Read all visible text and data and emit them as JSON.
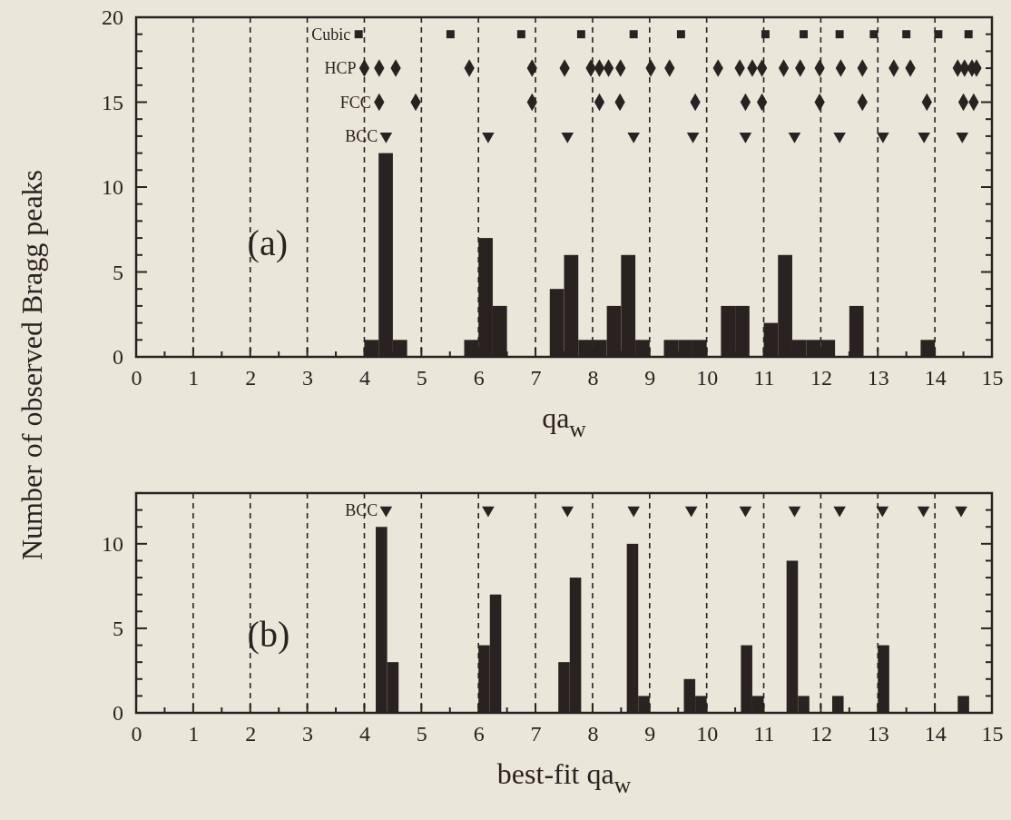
{
  "chart_data": [
    {
      "type": "histogram",
      "color": "#2a2220",
      "xlabel": "qa$_{w}$",
      "ylabel": "Number of observed Bragg peaks",
      "grid": "x",
      "annotations": [
        "(a)"
      ],
      "bins": [
        4,
        4.25,
        4.5,
        4.75,
        5,
        5.25,
        5.5,
        5.75,
        6,
        6.25,
        6.5,
        6.75,
        7,
        7.25,
        7.5,
        7.75,
        8,
        8.25,
        8.5,
        8.75,
        9,
        9.25,
        9.5,
        9.75,
        10,
        10.25,
        10.5,
        10.75,
        11,
        11.25,
        11.5,
        11.75,
        12,
        12.25,
        12.5,
        12.75,
        13,
        13.25,
        13.5,
        13.75,
        14
      ],
      "values": [
        1,
        12,
        1,
        0,
        0,
        0,
        0,
        1,
        7,
        3,
        0,
        0,
        0,
        4,
        6,
        1,
        1,
        3,
        6,
        1,
        0,
        1,
        1,
        1,
        0,
        3,
        3,
        0,
        2,
        6,
        1,
        1,
        1,
        0,
        3,
        0,
        0,
        0,
        0,
        1
      ],
      "xlim": [
        0,
        15
      ],
      "xticks": [
        0,
        {
          "value": 0.5,
          "label": null
        },
        1,
        {
          "value": 1.5,
          "label": null
        },
        2,
        {
          "value": 2.5,
          "label": null
        },
        3,
        {
          "value": 3.5,
          "label": null
        },
        4,
        {
          "value": 4.5,
          "label": null
        },
        5,
        {
          "value": 5.5,
          "label": null
        },
        6,
        {
          "value": 6.5,
          "label": null
        },
        7,
        {
          "value": 7.5,
          "label": null
        },
        8,
        {
          "value": 8.5,
          "label": null
        },
        9,
        {
          "value": 9.5,
          "label": null
        },
        10,
        {
          "value": 10.5,
          "label": null
        },
        11,
        {
          "value": 11.5,
          "label": null
        },
        12,
        {
          "value": 12.5,
          "label": null
        },
        13,
        {
          "value": 13.5,
          "label": null
        },
        14,
        {
          "value": 14.5,
          "label": null
        },
        15
      ],
      "ylim": [
        0,
        20
      ],
      "yticks": [
        0,
        {
          "value": 1,
          "label": null
        },
        {
          "value": 2,
          "label": null
        },
        {
          "value": 3,
          "label": null
        },
        {
          "value": 4,
          "label": null
        },
        5,
        {
          "value": 6,
          "label": null
        },
        {
          "value": 7,
          "label": null
        },
        {
          "value": 8,
          "label": null
        },
        {
          "value": 9,
          "label": null
        },
        10,
        {
          "value": 11,
          "label": null
        },
        {
          "value": 12,
          "label": null
        },
        {
          "value": 13,
          "label": null
        },
        {
          "value": 14,
          "label": null
        },
        15,
        {
          "value": 16,
          "label": null
        },
        {
          "value": 17,
          "label": null
        },
        {
          "value": 18,
          "label": null
        },
        {
          "value": 19,
          "label": null
        },
        20
      ],
      "series": [
        {
          "name": "Cubic",
          "type": "scatter",
          "marker": "square",
          "color": "#2a2220",
          "x": [
            3.9,
            5.51,
            6.75,
            7.8,
            8.72,
            9.55,
            11.03,
            11.7,
            12.33,
            12.93,
            13.5,
            14.06,
            14.59
          ],
          "values": [
            19,
            19,
            19,
            19,
            19,
            19,
            19,
            19,
            19,
            19,
            19,
            19,
            19
          ]
        },
        {
          "name": "HCP",
          "type": "scatter",
          "marker": "diamond",
          "color": "#2a2220",
          "x": [
            4.0,
            4.26,
            4.55,
            5.84,
            6.94,
            7.51,
            7.97,
            8.12,
            8.28,
            8.49,
            9.02,
            9.35,
            10.2,
            10.58,
            10.8,
            10.97,
            11.35,
            11.64,
            11.98,
            12.35,
            12.73,
            13.28,
            13.57,
            14.4,
            14.52,
            14.65,
            14.73
          ],
          "values": [
            17,
            17,
            17,
            17,
            17,
            17,
            17,
            17,
            17,
            17,
            17,
            17,
            17,
            17,
            17,
            17,
            17,
            17,
            17,
            17,
            17,
            17,
            17,
            17,
            17,
            17,
            17
          ]
        },
        {
          "name": "FCC",
          "type": "scatter",
          "marker": "diamond",
          "color": "#2a2220",
          "x": [
            4.26,
            4.9,
            6.94,
            8.12,
            8.48,
            9.8,
            10.68,
            10.97,
            11.98,
            12.73,
            13.86,
            14.5,
            14.68
          ],
          "values": [
            15,
            15,
            15,
            15,
            15,
            15,
            15,
            15,
            15,
            15,
            15,
            15,
            15
          ]
        },
        {
          "name": "BCC",
          "type": "scatter",
          "marker": "triangle",
          "color": "#2a2220",
          "x": [
            4.38,
            6.17,
            7.56,
            8.72,
            9.76,
            10.68,
            11.54,
            12.33,
            13.09,
            13.81,
            14.48
          ],
          "values": [
            13,
            13,
            13,
            13,
            13,
            13,
            13,
            13,
            13,
            13,
            13
          ]
        }
      ]
    },
    {
      "type": "histogram",
      "color": "#2a2220",
      "xlabel": "best-fit qa$_{w}$",
      "grid": "x",
      "annotations": [
        "(b)"
      ],
      "bins": [
        4.2,
        4.4,
        4.6,
        4.8,
        5,
        5.2,
        5.4,
        5.6,
        5.8,
        6,
        6.2,
        6.4,
        6.6,
        6.8,
        7,
        7.2,
        7.4,
        7.6,
        7.8,
        8,
        8.2,
        8.4,
        8.6,
        8.8,
        9,
        9.2,
        9.4,
        9.6,
        9.8,
        10,
        10.2,
        10.4,
        10.6,
        10.8,
        11,
        11.2,
        11.4,
        11.6,
        11.8,
        12,
        12.2,
        12.4,
        12.6,
        12.8,
        13,
        13.2,
        13.4,
        13.6,
        13.8,
        14,
        14.2,
        14.4,
        14.6
      ],
      "values": [
        11,
        3,
        0,
        0,
        0,
        0,
        0,
        0,
        0,
        4,
        7,
        0,
        0,
        0,
        0,
        0,
        3,
        8,
        0,
        0,
        0,
        0,
        10,
        1,
        0,
        0,
        0,
        2,
        1,
        0,
        0,
        0,
        4,
        1,
        0,
        0,
        9,
        1,
        0,
        0,
        1,
        0,
        0,
        0,
        4,
        0,
        0,
        0,
        0,
        0,
        0,
        1
      ],
      "xlim": [
        0,
        15
      ],
      "xticks": [
        0,
        {
          "value": 0.5,
          "label": null
        },
        1,
        {
          "value": 1.5,
          "label": null
        },
        2,
        {
          "value": 2.5,
          "label": null
        },
        3,
        {
          "value": 3.5,
          "label": null
        },
        4,
        {
          "value": 4.5,
          "label": null
        },
        5,
        {
          "value": 5.5,
          "label": null
        },
        6,
        {
          "value": 6.5,
          "label": null
        },
        7,
        {
          "value": 7.5,
          "label": null
        },
        8,
        {
          "value": 8.5,
          "label": null
        },
        9,
        {
          "value": 9.5,
          "label": null
        },
        10,
        {
          "value": 10.5,
          "label": null
        },
        11,
        {
          "value": 11.5,
          "label": null
        },
        12,
        {
          "value": 12.5,
          "label": null
        },
        13,
        {
          "value": 13.5,
          "label": null
        },
        14,
        {
          "value": 14.5,
          "label": null
        },
        15
      ],
      "ylim": [
        0,
        13
      ],
      "yticks": [
        0,
        {
          "value": 1,
          "label": null
        },
        {
          "value": 2,
          "label": null
        },
        {
          "value": 3,
          "label": null
        },
        {
          "value": 4,
          "label": null
        },
        5,
        {
          "value": 6,
          "label": null
        },
        {
          "value": 7,
          "label": null
        },
        {
          "value": 8,
          "label": null
        },
        {
          "value": 9,
          "label": null
        },
        10,
        {
          "value": 11,
          "label": null
        },
        {
          "value": 12,
          "label": null
        }
      ],
      "series": [
        {
          "name": "BCC",
          "type": "scatter",
          "marker": "triangle",
          "color": "#2a2220",
          "x": [
            4.38,
            6.17,
            7.56,
            8.72,
            9.73,
            10.68,
            11.54,
            12.33,
            13.08,
            13.8,
            14.46
          ],
          "values": [
            12,
            12,
            12,
            12,
            12,
            12,
            12,
            12,
            12,
            12,
            12
          ]
        }
      ]
    }
  ]
}
